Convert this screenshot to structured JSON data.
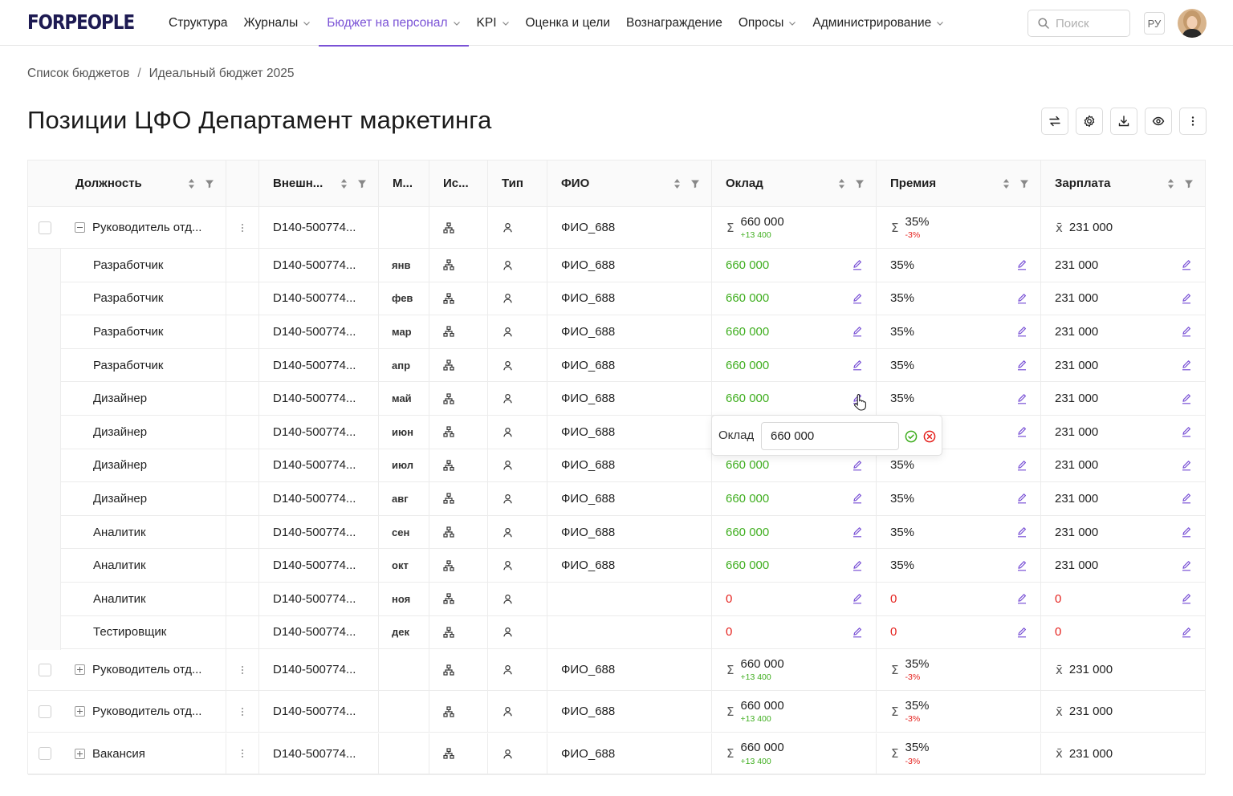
{
  "header": {
    "logo": "FORPEOPLE",
    "nav": [
      {
        "label": "Структура",
        "dropdown": false,
        "active": false
      },
      {
        "label": "Журналы",
        "dropdown": true,
        "active": false
      },
      {
        "label": "Бюджет на персонал",
        "dropdown": true,
        "active": true
      },
      {
        "label": "KPI",
        "dropdown": true,
        "active": false
      },
      {
        "label": "Оценка и цели",
        "dropdown": false,
        "active": false
      },
      {
        "label": "Вознаграждение",
        "dropdown": false,
        "active": false
      },
      {
        "label": "Опросы",
        "dropdown": true,
        "active": false
      },
      {
        "label": "Администрирование",
        "dropdown": true,
        "active": false
      }
    ],
    "search_placeholder": "Поиск",
    "lang": "РУ"
  },
  "breadcrumb": [
    "Список бюджетов",
    "Идеальный бюджет 2025"
  ],
  "page_title": "Позиции ЦФО Департамент маркетинга",
  "toolbar_icons": [
    "swap-icon",
    "gear-icon",
    "download-icon",
    "eye-icon",
    "more-vertical-icon"
  ],
  "columns": [
    {
      "key": "position",
      "label": "Должность",
      "sort": true,
      "filter": true
    },
    {
      "key": "menu",
      "label": "",
      "sort": false,
      "filter": false
    },
    {
      "key": "external",
      "label": "Внешн...",
      "sort": true,
      "filter": true
    },
    {
      "key": "month",
      "label": "М...",
      "sort": false,
      "filter": false
    },
    {
      "key": "source",
      "label": "Ис...",
      "sort": false,
      "filter": false
    },
    {
      "key": "type",
      "label": "Тип",
      "sort": false,
      "filter": false
    },
    {
      "key": "fio",
      "label": "ФИО",
      "sort": true,
      "filter": true
    },
    {
      "key": "salary",
      "label": "Оклад",
      "sort": true,
      "filter": true
    },
    {
      "key": "bonus",
      "label": "Премия",
      "sort": true,
      "filter": true
    },
    {
      "key": "pay",
      "label": "Зарплата",
      "sort": true,
      "filter": true
    }
  ],
  "parent_rows": [
    {
      "position": "Руководитель отд...",
      "expanded": true,
      "external": "D140-500774...",
      "fio": "ФИО_688",
      "salary": "660 000",
      "salary_delta": "+13 400",
      "bonus": "35%",
      "bonus_delta": "-3%",
      "pay": "231 000"
    },
    {
      "position": "Руководитель отд...",
      "expanded": false,
      "external": "D140-500774...",
      "fio": "ФИО_688",
      "salary": "660 000",
      "salary_delta": "+13 400",
      "bonus": "35%",
      "bonus_delta": "-3%",
      "pay": "231 000"
    },
    {
      "position": "Руководитель отд...",
      "expanded": false,
      "external": "D140-500774...",
      "fio": "ФИО_688",
      "salary": "660 000",
      "salary_delta": "+13 400",
      "bonus": "35%",
      "bonus_delta": "-3%",
      "pay": "231 000"
    },
    {
      "position": "Вакансия",
      "expanded": false,
      "external": "D140-500774...",
      "fio": "ФИО_688",
      "salary": "660 000",
      "salary_delta": "+13 400",
      "bonus": "35%",
      "bonus_delta": "-3%",
      "pay": "231 000"
    }
  ],
  "child_rows": [
    {
      "position": "Разработчик",
      "external": "D140-500774...",
      "month": "янв",
      "fio": "ФИО_688",
      "salary": "660 000",
      "bonus": "35%",
      "pay": "231 000",
      "zero": false
    },
    {
      "position": "Разработчик",
      "external": "D140-500774...",
      "month": "фев",
      "fio": "ФИО_688",
      "salary": "660 000",
      "bonus": "35%",
      "pay": "231 000",
      "zero": false
    },
    {
      "position": "Разработчик",
      "external": "D140-500774...",
      "month": "мар",
      "fio": "ФИО_688",
      "salary": "660 000",
      "bonus": "35%",
      "pay": "231 000",
      "zero": false
    },
    {
      "position": "Разработчик",
      "external": "D140-500774...",
      "month": "апр",
      "fio": "ФИО_688",
      "salary": "660 000",
      "bonus": "35%",
      "pay": "231 000",
      "zero": false
    },
    {
      "position": "Дизайнер",
      "external": "D140-500774...",
      "month": "май",
      "fio": "ФИО_688",
      "salary": "660 000",
      "bonus": "35%",
      "pay": "231 000",
      "zero": false
    },
    {
      "position": "Дизайнер",
      "external": "D140-500774...",
      "month": "июн",
      "fio": "ФИО_688",
      "salary": "",
      "bonus": "",
      "pay": "231 000",
      "zero": false
    },
    {
      "position": "Дизайнер",
      "external": "D140-500774...",
      "month": "июл",
      "fio": "ФИО_688",
      "salary": "660 000",
      "bonus": "35%",
      "pay": "231 000",
      "zero": false
    },
    {
      "position": "Дизайнер",
      "external": "D140-500774...",
      "month": "авг",
      "fio": "ФИО_688",
      "salary": "660 000",
      "bonus": "35%",
      "pay": "231 000",
      "zero": false
    },
    {
      "position": "Аналитик",
      "external": "D140-500774...",
      "month": "сен",
      "fio": "ФИО_688",
      "salary": "660 000",
      "bonus": "35%",
      "pay": "231 000",
      "zero": false
    },
    {
      "position": "Аналитик",
      "external": "D140-500774...",
      "month": "окт",
      "fio": "ФИО_688",
      "salary": "660 000",
      "bonus": "35%",
      "pay": "231 000",
      "zero": false
    },
    {
      "position": "Аналитик",
      "external": "D140-500774...",
      "month": "ноя",
      "fio": "",
      "salary": "0",
      "bonus": "0",
      "pay": "0",
      "zero": true
    },
    {
      "position": "Тестировщик",
      "external": "D140-500774...",
      "month": "дек",
      "fio": "",
      "salary": "0",
      "bonus": "0",
      "pay": "0",
      "zero": true
    }
  ],
  "popover": {
    "label": "Оклад",
    "value": "660 000"
  },
  "colors": {
    "accent": "#7a52d6",
    "positive": "#3fae1f",
    "negative": "#e5231f",
    "logo": "#1d1a52"
  }
}
